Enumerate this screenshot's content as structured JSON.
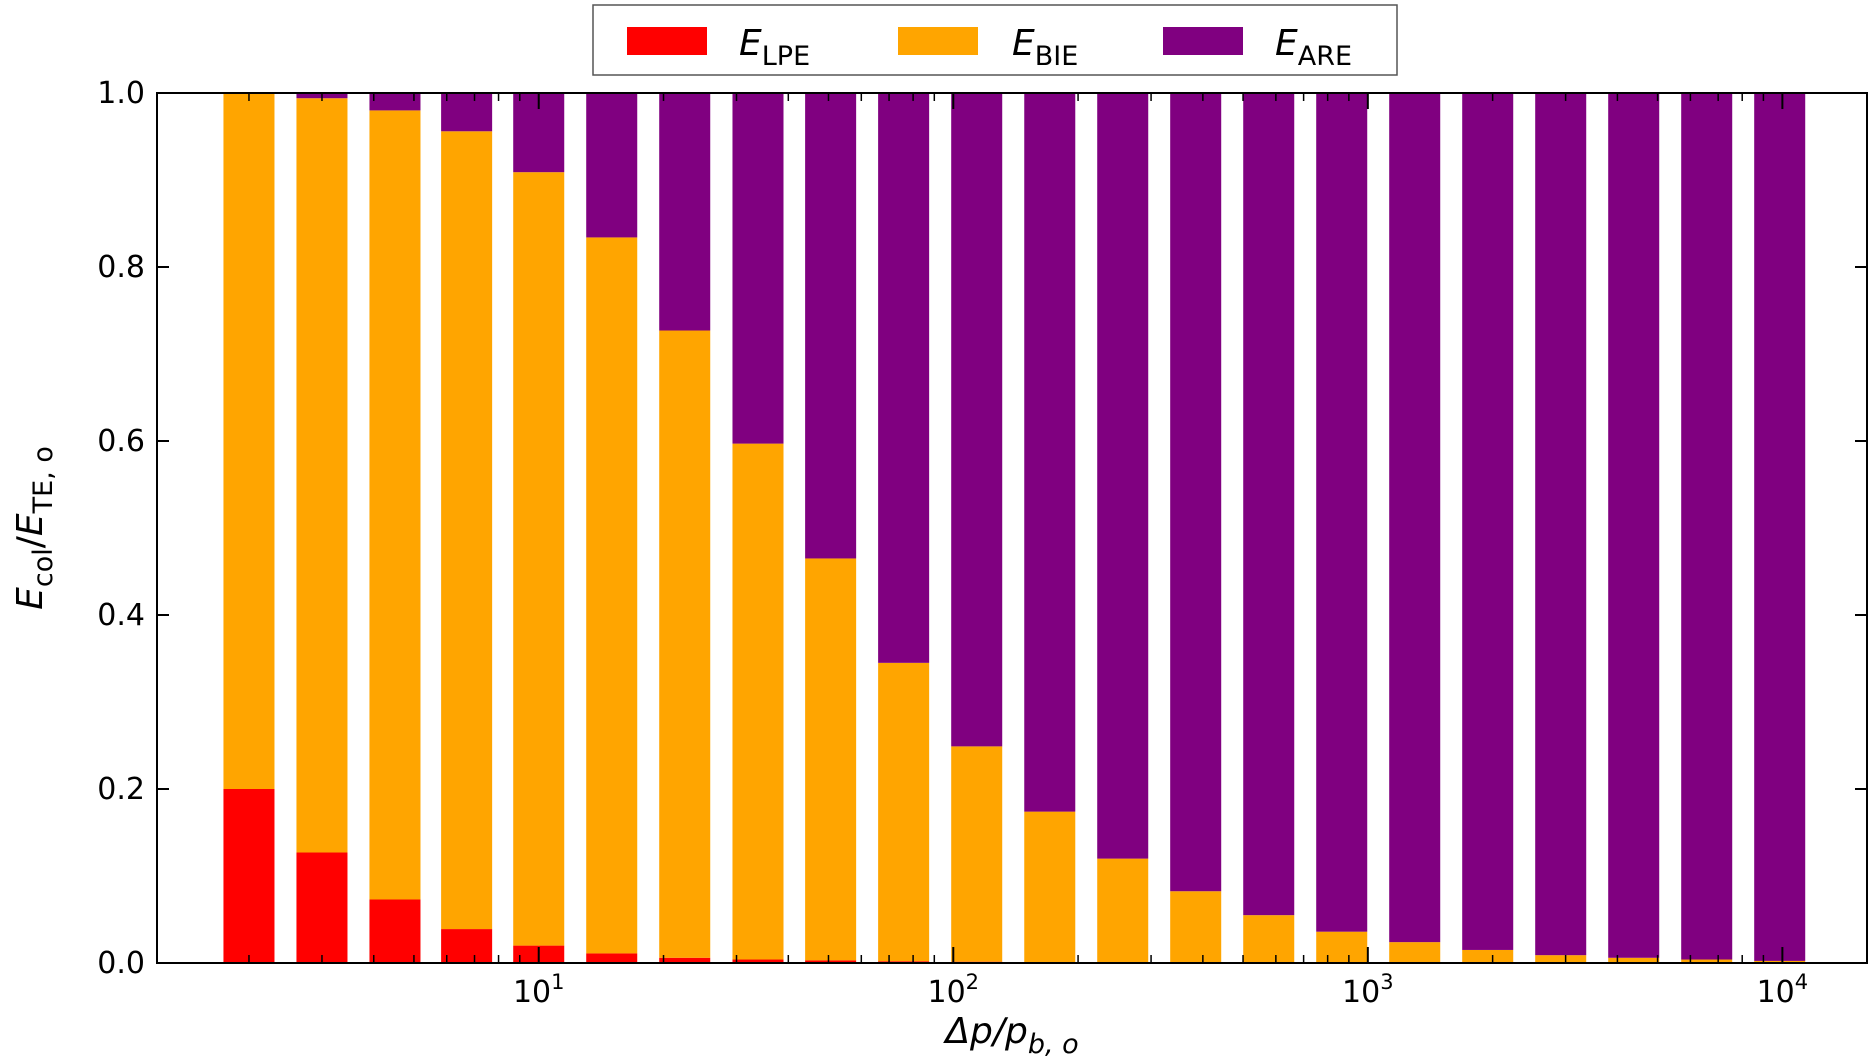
{
  "chart_data": {
    "type": "bar",
    "stacked": true,
    "xscale": "log",
    "x": [
      2,
      3,
      4.5,
      6.7,
      10,
      15,
      22.5,
      33.8,
      50.6,
      75.9,
      113.9,
      170.9,
      256.3,
      384.4,
      576.7,
      865,
      1297.5,
      1946.2,
      2919.3,
      4379,
      6568.4,
      9852.6
    ],
    "series": [
      {
        "name": "E_LPE",
        "color": "#ff0000",
        "values": [
          0.2,
          0.127,
          0.073,
          0.039,
          0.02,
          0.011,
          0.006,
          0.004,
          0.003,
          0.002,
          0.0015,
          0.001,
          0.001,
          0.001,
          0.0005,
          0.0005,
          0.0005,
          0.0005,
          0.0003,
          0.0003,
          0.0002,
          0.0002
        ]
      },
      {
        "name": "E_BIE",
        "color": "#ffa500",
        "values": [
          0.8,
          0.867,
          0.907,
          0.917,
          0.889,
          0.823,
          0.721,
          0.593,
          0.462,
          0.343,
          0.2475,
          0.173,
          0.119,
          0.0815,
          0.0545,
          0.0355,
          0.0235,
          0.0145,
          0.0087,
          0.0057,
          0.0038,
          0.0022
        ]
      },
      {
        "name": "E_ARE",
        "color": "#800080",
        "values": [
          0.0,
          0.006,
          0.02,
          0.044,
          0.091,
          0.166,
          0.273,
          0.403,
          0.535,
          0.655,
          0.751,
          0.826,
          0.88,
          0.9175,
          0.945,
          0.964,
          0.976,
          0.985,
          0.991,
          0.994,
          0.996,
          0.9976
        ]
      }
    ],
    "legend": [
      {
        "main": "E",
        "sub": "LPE"
      },
      {
        "main": "E",
        "sub": "BIE"
      },
      {
        "main": "E",
        "sub": "ARE"
      }
    ],
    "legend_position": "top-center, outside plot area",
    "ylim": [
      0,
      1.0
    ],
    "xlim": [
      1.2,
      16000
    ],
    "yticks": [
      "0.0",
      "0.2",
      "0.4",
      "0.6",
      "0.8",
      "1.0"
    ],
    "xticks": [
      {
        "base": "10",
        "exp": "1",
        "value": 10
      },
      {
        "base": "10",
        "exp": "2",
        "value": 100
      },
      {
        "base": "10",
        "exp": "3",
        "value": 1000
      },
      {
        "base": "10",
        "exp": "4",
        "value": 10000
      }
    ],
    "xlabel": {
      "prefix": "Δp/p",
      "sub": "b, o"
    },
    "ylabel": {
      "a": "E",
      "a_sub": "col",
      "sep": "/",
      "b": "E",
      "b_sub": "TE, o"
    }
  }
}
